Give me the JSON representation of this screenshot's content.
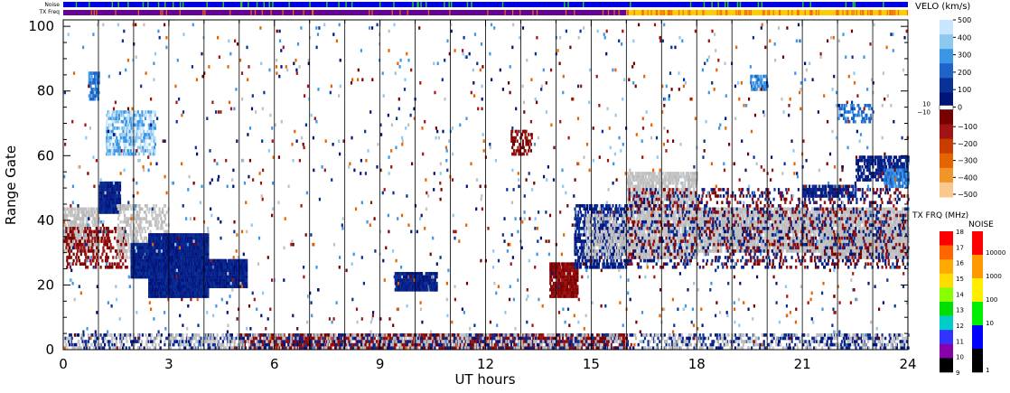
{
  "chart_data": {
    "type": "heatmap",
    "title": "",
    "xlabel": "UT hours",
    "ylabel": "Range Gate",
    "xlim": [
      0,
      24
    ],
    "ylim": [
      0,
      102
    ],
    "x_ticks": [
      "0",
      "3",
      "6",
      "9",
      "12",
      "15",
      "18",
      "21",
      "24"
    ],
    "x_tick_values": [
      0,
      3,
      6,
      9,
      12,
      15,
      18,
      21,
      24
    ],
    "y_ticks": [
      "0",
      "20",
      "40",
      "60",
      "80",
      "100"
    ],
    "y_tick_values": [
      0,
      20,
      40,
      60,
      80,
      100
    ],
    "grid_vertical_hours": [
      1,
      2,
      3,
      4,
      5,
      6,
      7,
      8,
      9,
      10,
      11,
      12,
      13,
      14,
      15,
      16,
      17,
      18,
      19,
      20,
      21,
      22,
      23
    ],
    "top_strips": {
      "noise_label": "Noise",
      "txfreq_label": "TX Freq",
      "noise_colors": [
        "#0000e0",
        "#22cc22"
      ],
      "txfreq_colors": {
        "before_16h": "#660099",
        "after_16h": "#ffcc00",
        "accent": "#ff6600"
      }
    },
    "velocity_colorbar": {
      "label": "VELO (km/s)",
      "ticks": [
        "500",
        "400",
        "300",
        "200",
        "100",
        "0",
        "−100",
        "−200",
        "−300",
        "−400",
        "−500"
      ],
      "tick_values": [
        500,
        400,
        300,
        200,
        100,
        0,
        -100,
        -200,
        -300,
        -400,
        -500
      ],
      "small_labels": [
        "10",
        "−10"
      ],
      "colors_pos": [
        "#c8e6ff",
        "#8cc8f0",
        "#3c96e6",
        "#1e64c8",
        "#0a3296",
        "#001478"
      ],
      "colors_neg": [
        "#780000",
        "#a01414",
        "#c83c00",
        "#e66400",
        "#f09628",
        "#fac88c"
      ]
    },
    "txfreq_colorbar": {
      "label": "TX FRQ (MHz)",
      "ticks": [
        "18",
        "17",
        "16",
        "15",
        "14",
        "13",
        "12",
        "11",
        "10",
        "9"
      ],
      "colors": [
        "#ff0000",
        "#ff6600",
        "#ffaa00",
        "#ffdd00",
        "#88ff00",
        "#00dd00",
        "#00cccc",
        "#3333ff",
        "#8800aa",
        "#000000"
      ]
    },
    "noise_colorbar": {
      "label": "NOISE",
      "ticks": [
        "10000",
        "1000",
        "100",
        "10",
        "1"
      ],
      "colors": [
        "#ff0000",
        "#ff9900",
        "#ffee00",
        "#00ee00",
        "#0000ff",
        "#000000"
      ]
    },
    "ground_scatter_color": "#c0c0c0",
    "regions": [
      {
        "t0": 0.0,
        "t1": 1.0,
        "g0": 30,
        "g1": 44,
        "kind": "gray",
        "density": 0.5
      },
      {
        "t0": 0.0,
        "t1": 1.8,
        "g0": 25,
        "g1": 38,
        "kind": "neg_dark",
        "density": 0.25
      },
      {
        "t0": 1.0,
        "t1": 1.6,
        "g0": 42,
        "g1": 52,
        "kind": "pos_dark",
        "density": 0.85
      },
      {
        "t0": 1.5,
        "t1": 3.0,
        "g0": 28,
        "g1": 45,
        "kind": "gray",
        "density": 0.3
      },
      {
        "t0": 1.9,
        "t1": 3.2,
        "g0": 22,
        "g1": 33,
        "kind": "pos_dark",
        "density": 0.9
      },
      {
        "t0": 2.4,
        "t1": 4.1,
        "g0": 16,
        "g1": 36,
        "kind": "pos_dark",
        "density": 0.95
      },
      {
        "t0": 4.0,
        "t1": 5.2,
        "g0": 19,
        "g1": 28,
        "kind": "pos_dark",
        "density": 0.9
      },
      {
        "t0": 0.7,
        "t1": 1.0,
        "g0": 77,
        "g1": 86,
        "kind": "pos_mid",
        "density": 0.6
      },
      {
        "t0": 1.2,
        "t1": 2.6,
        "g0": 60,
        "g1": 74,
        "kind": "pos_light",
        "density": 0.45
      },
      {
        "t0": 9.4,
        "t1": 10.6,
        "g0": 18,
        "g1": 24,
        "kind": "pos_dark",
        "density": 0.85
      },
      {
        "t0": 13.8,
        "t1": 14.6,
        "g0": 16,
        "g1": 27,
        "kind": "neg_dark",
        "density": 0.8
      },
      {
        "t0": 14.5,
        "t1": 16.0,
        "g0": 25,
        "g1": 45,
        "kind": "pos_dark",
        "density": 0.45
      },
      {
        "t0": 14.8,
        "t1": 16.0,
        "g0": 28,
        "g1": 42,
        "kind": "gray",
        "density": 0.35
      },
      {
        "t0": 16.0,
        "t1": 18.0,
        "g0": 28,
        "g1": 55,
        "kind": "gray",
        "density": 0.55
      },
      {
        "t0": 18.0,
        "t1": 24.0,
        "g0": 30,
        "g1": 44,
        "kind": "gray",
        "density": 0.65
      },
      {
        "t0": 21.5,
        "t1": 24.0,
        "g0": 28,
        "g1": 36,
        "kind": "gray",
        "density": 0.85
      },
      {
        "t0": 16.0,
        "t1": 24.0,
        "g0": 25,
        "g1": 50,
        "kind": "pos_dark",
        "density": 0.1
      },
      {
        "t0": 16.0,
        "t1": 24.0,
        "g0": 25,
        "g1": 50,
        "kind": "neg_dark",
        "density": 0.07
      },
      {
        "t0": 22.5,
        "t1": 24.0,
        "g0": 52,
        "g1": 60,
        "kind": "pos_dark",
        "density": 0.55
      },
      {
        "t0": 23.3,
        "t1": 24.0,
        "g0": 50,
        "g1": 56,
        "kind": "pos_mid",
        "density": 0.6
      },
      {
        "t0": 21.0,
        "t1": 22.5,
        "g0": 47,
        "g1": 51,
        "kind": "pos_dark",
        "density": 0.5
      },
      {
        "t0": 19.5,
        "t1": 20.0,
        "g0": 80,
        "g1": 85,
        "kind": "pos_mid",
        "density": 0.5
      },
      {
        "t0": 22.0,
        "t1": 23.0,
        "g0": 70,
        "g1": 76,
        "kind": "pos_mid",
        "density": 0.35
      },
      {
        "t0": 12.7,
        "t1": 13.3,
        "g0": 60,
        "g1": 68,
        "kind": "neg_dark",
        "density": 0.3
      },
      {
        "t0": 5.0,
        "t1": 16.0,
        "g0": 0,
        "g1": 5,
        "kind": "neg_dark",
        "density": 0.55
      },
      {
        "t0": 0.0,
        "t1": 24.0,
        "g0": 0,
        "g1": 5,
        "kind": "pos_dark",
        "density": 0.2
      },
      {
        "t0": 0.0,
        "t1": 24.0,
        "g0": 0,
        "g1": 5,
        "kind": "gray",
        "density": 0.15
      }
    ]
  }
}
